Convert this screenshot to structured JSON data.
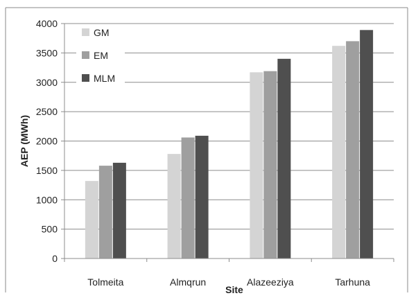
{
  "chart_data": {
    "type": "bar",
    "categories": [
      "Tolmeita",
      "Almqrun",
      "Alazeeziya",
      "Tarhuna"
    ],
    "series": [
      {
        "name": "GM",
        "values": [
          1320,
          1780,
          3170,
          3620
        ],
        "color": "#d4d4d4"
      },
      {
        "name": "EM",
        "values": [
          1580,
          2060,
          3190,
          3700
        ],
        "color": "#9f9f9f"
      },
      {
        "name": "MLM",
        "values": [
          1630,
          2090,
          3400,
          3890
        ],
        "color": "#4f4f4f"
      }
    ],
    "title": "",
    "xlabel": "Site",
    "ylabel": "AEP (MWh)",
    "ylim": [
      0,
      4000
    ],
    "yticks": [
      0,
      500,
      1000,
      1500,
      2000,
      2500,
      3000,
      3500,
      4000
    ],
    "grid": true,
    "legend_position": "top-left"
  }
}
